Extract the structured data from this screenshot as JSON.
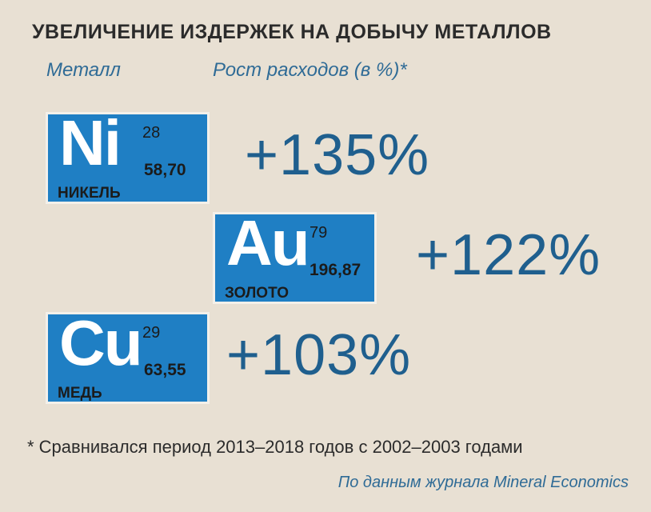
{
  "chart_data": {
    "type": "table",
    "title": "УВЕЛИЧЕНИЕ ИЗДЕРЖЕК НА ДОБЫЧУ МЕТАЛЛОВ",
    "columns": [
      "Металл",
      "Рост расходов (в %)*"
    ],
    "rows": [
      {
        "symbol": "Ni",
        "atomic_number": "28",
        "atomic_mass": "58,70",
        "name": "НИКЕЛЬ",
        "growth_label": "+135%",
        "growth": 135
      },
      {
        "symbol": "Au",
        "atomic_number": "79",
        "atomic_mass": "196,87",
        "name": "ЗОЛОТО",
        "growth_label": "+122%",
        "growth": 122
      },
      {
        "symbol": "Cu",
        "atomic_number": "29",
        "atomic_mass": "63,55",
        "name": "МЕДЬ",
        "growth_label": "+103%",
        "growth": 103
      }
    ],
    "footnote": "* Сравнивался период 2013–2018 годов с 2002–2003 годами",
    "source": "По данным журнала Mineral Economics"
  },
  "colors": {
    "background": "#e8e0d3",
    "tile": "#1f7fc4",
    "accent_text": "#1f5f8e",
    "header_text": "#2f6b96"
  }
}
